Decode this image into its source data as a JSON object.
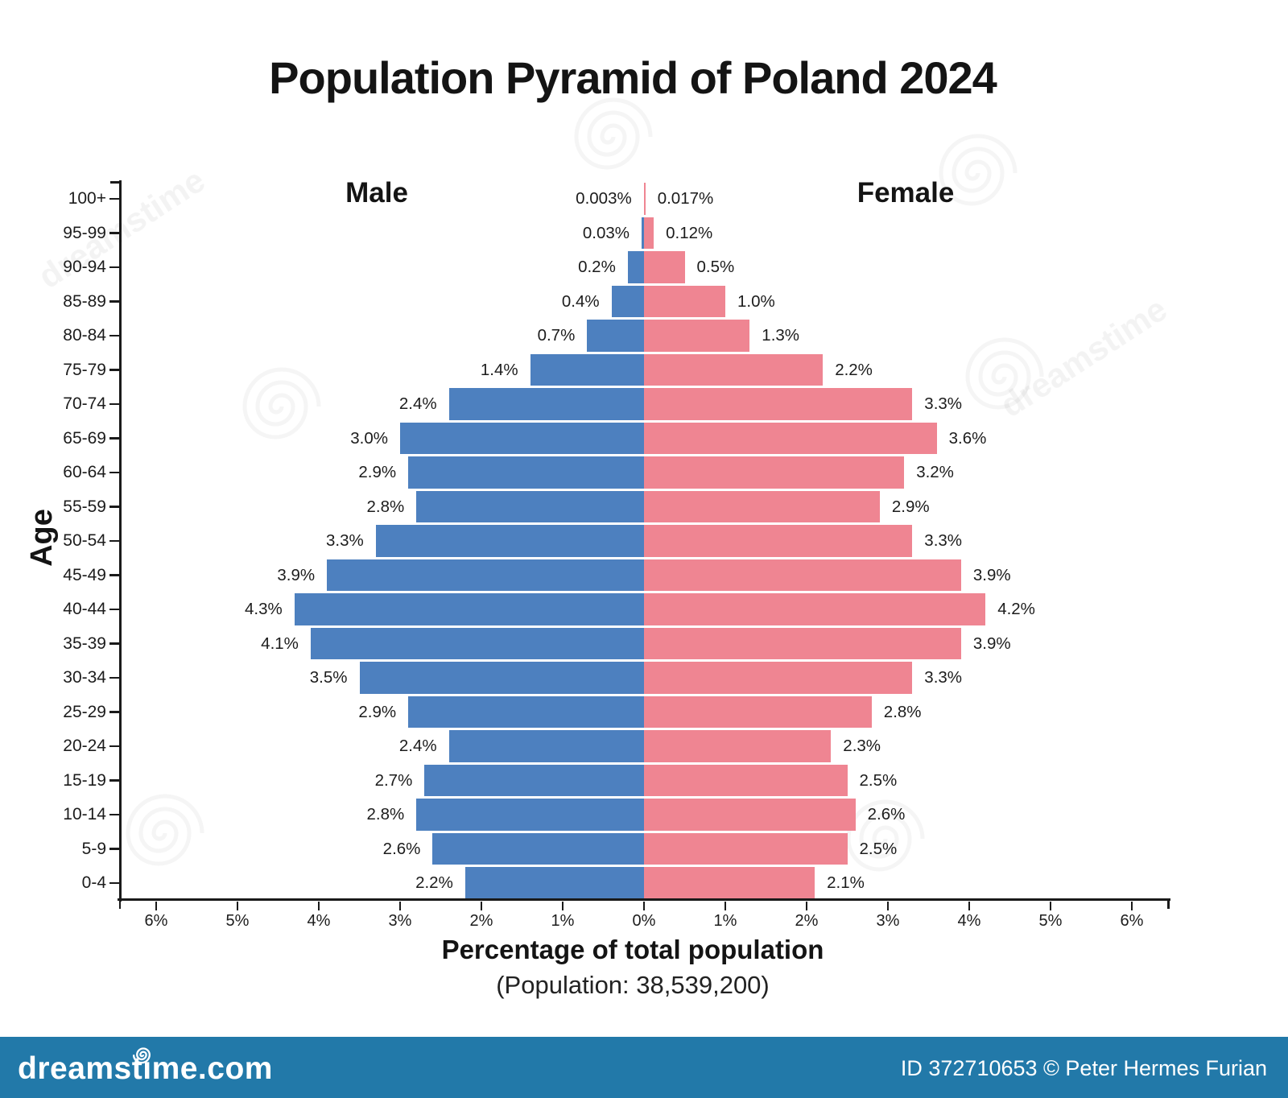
{
  "chart_data": {
    "type": "bar",
    "subtype": "population_pyramid",
    "title": "Population Pyramid of Poland 2024",
    "xlabel": "Percentage of total population",
    "x_sublabel": "(Population: 38,539,200)",
    "ylabel": "Age",
    "categories": [
      "100+",
      "95-99",
      "90-94",
      "85-89",
      "80-84",
      "75-79",
      "70-74",
      "65-69",
      "60-64",
      "55-59",
      "50-54",
      "45-49",
      "40-44",
      "35-39",
      "30-34",
      "25-29",
      "20-24",
      "15-19",
      "10-14",
      "5-9",
      "0-4"
    ],
    "series": [
      {
        "name": "Male",
        "side": "left",
        "color": "#4d80bf",
        "values": [
          0.003,
          0.03,
          0.2,
          0.4,
          0.7,
          1.4,
          2.4,
          3.0,
          2.9,
          2.8,
          3.3,
          3.9,
          4.3,
          4.1,
          3.5,
          2.9,
          2.4,
          2.7,
          2.8,
          2.6,
          2.2
        ],
        "labels": [
          "0.003%",
          "0.03%",
          "0.2%",
          "0.4%",
          "0.7%",
          "1.4%",
          "2.4%",
          "3.0%",
          "2.9%",
          "2.8%",
          "3.3%",
          "3.9%",
          "4.3%",
          "4.1%",
          "3.5%",
          "2.9%",
          "2.4%",
          "2.7%",
          "2.8%",
          "2.6%",
          "2.2%"
        ]
      },
      {
        "name": "Female",
        "side": "right",
        "color": "#ef8592",
        "values": [
          0.017,
          0.12,
          0.5,
          1.0,
          1.3,
          2.2,
          3.3,
          3.6,
          3.2,
          2.9,
          3.3,
          3.9,
          4.2,
          3.9,
          3.3,
          2.8,
          2.3,
          2.5,
          2.6,
          2.5,
          2.1
        ],
        "labels": [
          "0.017%",
          "0.12%",
          "0.5%",
          "1.0%",
          "1.3%",
          "2.2%",
          "3.3%",
          "3.6%",
          "3.2%",
          "2.9%",
          "3.3%",
          "3.9%",
          "4.2%",
          "3.9%",
          "3.3%",
          "2.8%",
          "2.3%",
          "2.5%",
          "2.6%",
          "2.5%",
          "2.1%"
        ]
      }
    ],
    "x_ticks": [
      "6%",
      "5%",
      "4%",
      "3%",
      "2%",
      "1%",
      "0%",
      "1%",
      "2%",
      "3%",
      "4%",
      "5%",
      "6%"
    ],
    "x_tick_values": [
      -6,
      -5,
      -4,
      -3,
      -2,
      -1,
      0,
      1,
      2,
      3,
      4,
      5,
      6
    ],
    "xlim": [
      -6.45,
      6.45
    ],
    "grid": false,
    "axis_color": "#1a1a1a"
  },
  "watermark": {
    "text": "dreamstime"
  },
  "footer": {
    "site": "dreamstime.com",
    "credit": "ID 372710653 © Peter Hermes Furian",
    "color": "#2279a9"
  }
}
